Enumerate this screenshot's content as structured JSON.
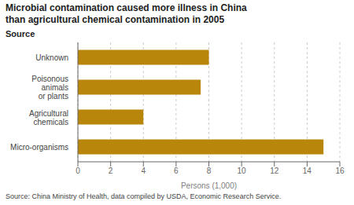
{
  "chart_data": {
    "type": "bar",
    "orientation": "horizontal",
    "title": "Microbial contamination caused more illness in China\nthan agricultural chemical contamination in 2005",
    "categories": [
      "Micro-organisms",
      "Agricultural\nchemicals",
      "Poisonous\nanimals\nor plants",
      "Unknown"
    ],
    "values": [
      15.0,
      4.0,
      7.5,
      8.0
    ],
    "color": "#b8860b",
    "xlabel": "Persons (1,000)",
    "xlim": [
      0,
      16
    ],
    "xticks": [
      0,
      2,
      4,
      6,
      8,
      10,
      12,
      14,
      16
    ],
    "grid": true,
    "annotations": [
      "Source",
      "Source:  China Ministry of Health, data compiled by USDA, Economic Research Service."
    ]
  }
}
